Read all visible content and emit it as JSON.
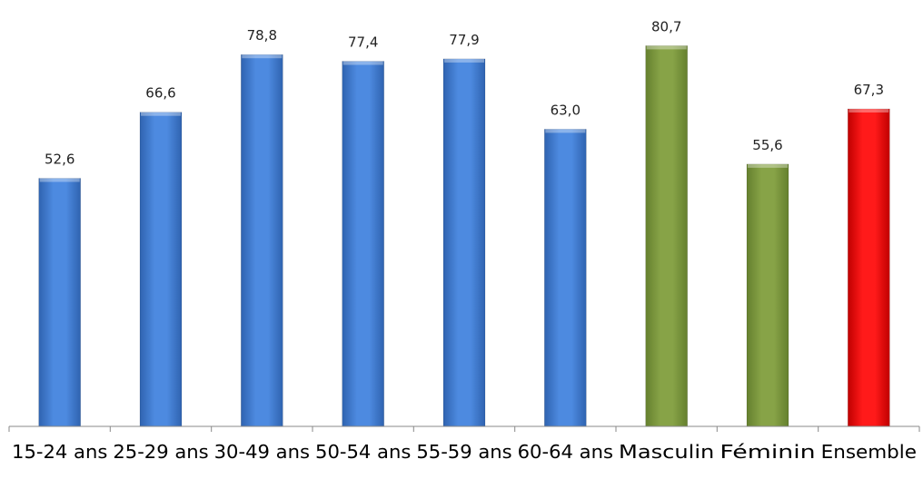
{
  "chart_data": {
    "type": "bar",
    "title": "",
    "xlabel": "",
    "ylabel": "",
    "categories": [
      "15-24 ans",
      "25-29 ans",
      "30-49 ans",
      "50-54 ans",
      "55-59 ans",
      "60-64 ans",
      "Masculin",
      "Féminin",
      "Ensemble"
    ],
    "values": [
      52.6,
      66.6,
      78.8,
      77.4,
      77.9,
      63.0,
      80.7,
      55.6,
      67.3
    ],
    "value_labels": [
      "52,6",
      "66,6",
      "78,8",
      "77,4",
      "77,9",
      "63,0",
      "80,7",
      "55,6",
      "67,3"
    ],
    "bar_colors": [
      "#4a86d8",
      "#4a86d8",
      "#4a86d8",
      "#4a86d8",
      "#4a86d8",
      "#4a86d8",
      "#84a044",
      "#84a044",
      "#f01010"
    ],
    "ylim": [
      0,
      90
    ],
    "grid": false,
    "legend": false,
    "yaxis_visible": false
  }
}
